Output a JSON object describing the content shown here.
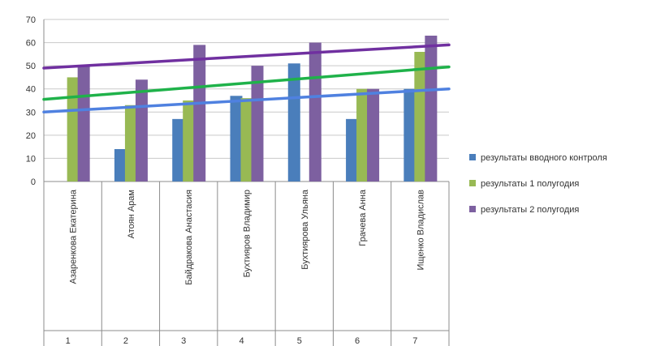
{
  "chart_data": {
    "type": "bar",
    "title": "",
    "xlabel": "",
    "ylabel": "",
    "ylim": [
      0,
      70
    ],
    "yticks": [
      0,
      10,
      20,
      30,
      40,
      50,
      60,
      70
    ],
    "grid": true,
    "legend_position": "right",
    "categories": [
      {
        "num": "1",
        "name": "Азаренкова Екатерина"
      },
      {
        "num": "2",
        "name": "Атоян Арам"
      },
      {
        "num": "3",
        "name": "Байдракова Анастасия"
      },
      {
        "num": "4",
        "name": "Бухтияров Владимир"
      },
      {
        "num": "5",
        "name": "Бухтиярова Ульяна"
      },
      {
        "num": "6",
        "name": "Грачева Анна"
      },
      {
        "num": "7",
        "name": "Ищенко Владислав"
      }
    ],
    "series": [
      {
        "name": "результаты вводного контроля",
        "color": "#4a7ebb",
        "values": [
          0,
          14,
          27,
          37,
          51,
          27,
          40
        ]
      },
      {
        "name": "результаты 1 полугодия",
        "color": "#98b954",
        "values": [
          45,
          33,
          35,
          36,
          0,
          40,
          56
        ]
      },
      {
        "name": "результаты 2 полугодия",
        "color": "#7d60a0",
        "values": [
          50,
          44,
          59,
          50,
          60,
          40,
          63
        ]
      }
    ],
    "trendlines": [
      {
        "series": "результаты вводного контроля",
        "color": "#4f81e0",
        "start": 30,
        "end": 40
      },
      {
        "series": "результаты 1 полугодия",
        "color": "#1fb24a",
        "start": 35.5,
        "end": 49.5
      },
      {
        "series": "результаты 2 полугодия",
        "color": "#7030a0",
        "start": 49,
        "end": 59
      }
    ]
  }
}
